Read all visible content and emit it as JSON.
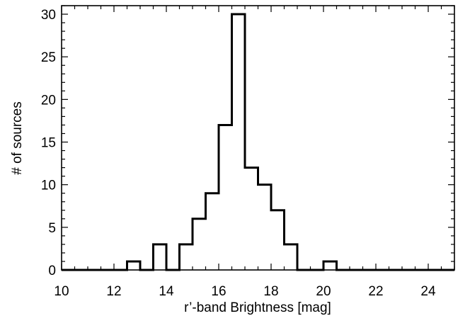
{
  "chart_data": {
    "type": "bar",
    "style": "step-histogram",
    "xlabel": "r’-band Brightness [mag]",
    "ylabel": "# of sources",
    "xlim": [
      10,
      25
    ],
    "ylim": [
      0,
      31
    ],
    "xticks": [
      10,
      12,
      14,
      16,
      18,
      20,
      22,
      24
    ],
    "yticks": [
      0,
      5,
      10,
      15,
      20,
      25,
      30
    ],
    "bin_width": 0.5,
    "bin_edges": [
      10.0,
      10.5,
      11.0,
      11.5,
      12.0,
      12.5,
      13.0,
      13.5,
      14.0,
      14.5,
      15.0,
      15.5,
      16.0,
      16.5,
      17.0,
      17.5,
      18.0,
      18.5,
      19.0,
      19.5,
      20.0,
      20.5,
      21.0,
      21.5,
      22.0,
      22.5,
      23.0,
      23.5,
      24.0,
      24.5,
      25.0
    ],
    "values": [
      0,
      0,
      0,
      0,
      0,
      1,
      0,
      3,
      0,
      3,
      6,
      9,
      17,
      30,
      12,
      10,
      7,
      3,
      0,
      0,
      1,
      0,
      0,
      0,
      0,
      0,
      0,
      0,
      0,
      0
    ],
    "grid": false,
    "line_color": "#000000"
  }
}
